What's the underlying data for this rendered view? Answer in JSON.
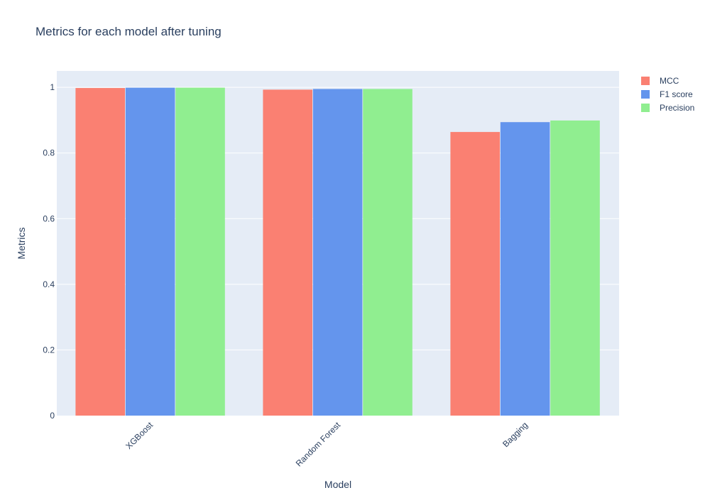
{
  "chart_data": {
    "type": "bar",
    "title": "Metrics for each model after tuning",
    "xlabel": "Model",
    "ylabel": "Metrics",
    "categories": [
      "XGBoost",
      "Random Forest",
      "Bagging"
    ],
    "series": [
      {
        "name": "MCC",
        "color": "#fa8072",
        "values": [
          0.998,
          0.993,
          0.864
        ]
      },
      {
        "name": "F1 score",
        "color": "#6495ed",
        "values": [
          0.999,
          0.995,
          0.894
        ]
      },
      {
        "name": "Precision",
        "color": "#90ee90",
        "values": [
          0.999,
          0.995,
          0.899
        ]
      }
    ],
    "ylim": [
      0,
      1.05
    ],
    "yticks": [
      0,
      0.2,
      0.4,
      0.6,
      0.8,
      1
    ],
    "ytick_labels": [
      "0",
      "0.2",
      "0.4",
      "0.6",
      "0.8",
      "1"
    ],
    "grid": true,
    "legend_position": "top-right",
    "plot_background": "#e5ecf6",
    "gridline_color": "#ffffff",
    "text_color": "#2a3f5f"
  }
}
